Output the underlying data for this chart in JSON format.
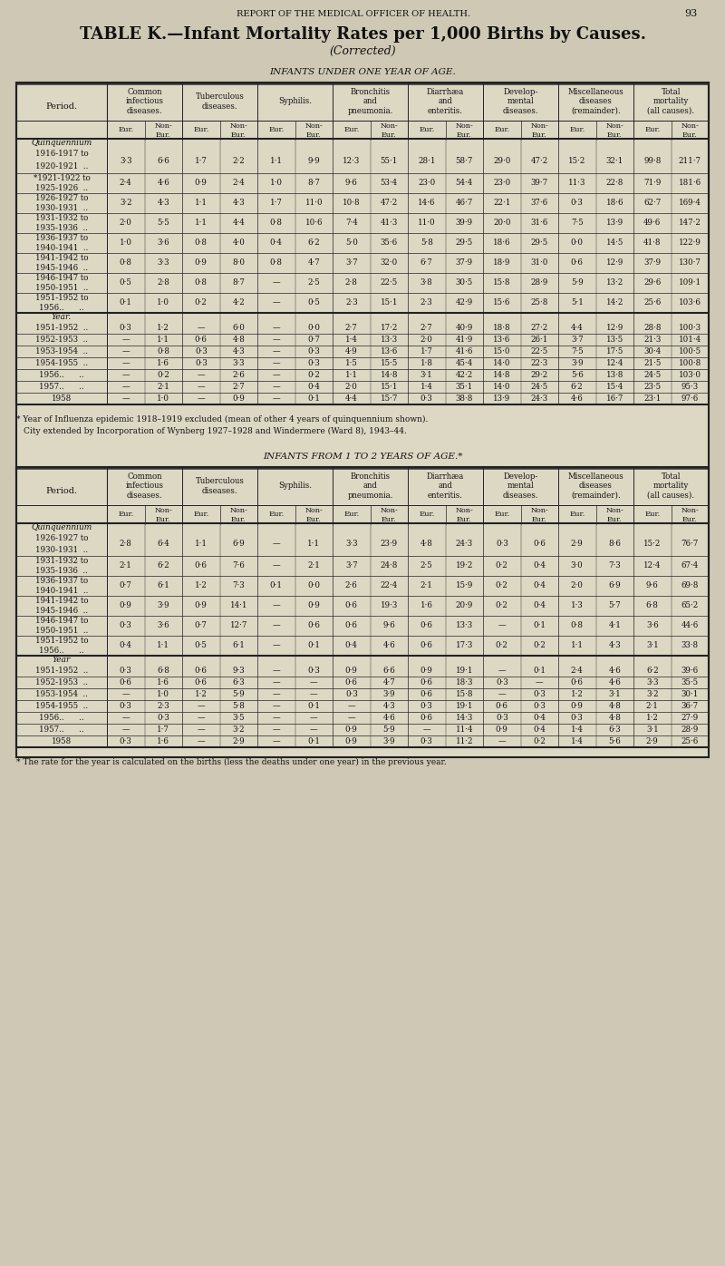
{
  "page_header": "REPORT OF THE MEDICAL OFFICER OF HEALTH.",
  "page_number": "93",
  "title_line1": "TABLE K.—Infant Mortality Rates per 1,000 Births by Causes.",
  "title_line2": "(Corrected)",
  "section1_title": "Infants under one year of age.",
  "section2_title": "Infants from 1 to 2 years of age.*",
  "col_headers": [
    "Common\ninfectious\ndiseases.",
    "Tuberculous\ndiseases.",
    "Syphilis.",
    "Bronchitis\nand\npneumonia.",
    "Diarrhæa\nand\nenteritis.",
    "Develop-\nmental\ndiseases.",
    "Miscellaneous\ndiseases\n(remainder).",
    "Total\nmortality\n(all causes)."
  ],
  "footnote1": "* Year of Influenza epidemic 1918–1919 excluded (mean of other 4 years of quinquennium shown).",
  "footnote2": "City extended by Incorporation of Wynberg 1927–1928 and Windermere (Ward 8), 1943–44.",
  "footnote3": "* The rate for the year is calculated on the births (less the deaths under one year) in the previous year.",
  "table1_quinquennia_labels": [
    "Quinquennium\n1916-1917 to\n1920-1921  ..",
    "*1921-1922 to\n1925-1926  ..",
    "1926-1927 to\n1930-1931  ..",
    "1931-1932 to\n1935-1936  ..",
    "1936-1937 to\n1940-1941  ..",
    "1941-1942 to\n1945-1946  ..",
    "1946-1947 to\n1950-1951  ..",
    "1951-1952 to\n1956..      .."
  ],
  "table1_year_labels": [
    "1951-1952  ..",
    "1952-1953  ..",
    "1953-1954  ..",
    "1954-1955  ..",
    "1956..      ..",
    "1957..      ..",
    "1958"
  ],
  "table1_quinquennia_data": [
    [
      "3·3",
      "6·6",
      "1·7",
      "2·2",
      "1·1",
      "9·9",
      "12·3",
      "55·1",
      "28·1",
      "58·7",
      "29·0",
      "47·2",
      "15·2",
      "32·1",
      "99·8",
      "211·7"
    ],
    [
      "2·4",
      "4·6",
      "0·9",
      "2·4",
      "1·0",
      "8·7",
      "9·6",
      "53·4",
      "23·0",
      "54·4",
      "23·0",
      "39·7",
      "11·3",
      "22·8",
      "71·9",
      "181·6"
    ],
    [
      "3·2",
      "4·3",
      "1·1",
      "4·3",
      "1·7",
      "11·0",
      "10·8",
      "47·2",
      "14·6",
      "46·7",
      "22·1",
      "37·6",
      "0·3",
      "18·6",
      "62·7",
      "169·4"
    ],
    [
      "2·0",
      "5·5",
      "1·1",
      "4·4",
      "0·8",
      "10·6",
      "7·4",
      "41·3",
      "11·0",
      "39·9",
      "20·0",
      "31·6",
      "7·5",
      "13·9",
      "49·6",
      "147·2"
    ],
    [
      "1·0",
      "3·6",
      "0·8",
      "4·0",
      "0·4",
      "6·2",
      "5·0",
      "35·6",
      "5·8",
      "29·5",
      "18·6",
      "29·5",
      "0·0",
      "14·5",
      "41·8",
      "122·9"
    ],
    [
      "0·8",
      "3·3",
      "0·9",
      "8·0",
      "0·8",
      "4·7",
      "3·7",
      "32·0",
      "6·7",
      "37·9",
      "18·9",
      "31·0",
      "0·6",
      "12·9",
      "37·9",
      "130·7"
    ],
    [
      "0·5",
      "2·8",
      "0·8",
      "8·7",
      "—",
      "2·5",
      "2·8",
      "22·5",
      "3·8",
      "30·5",
      "15·8",
      "28·9",
      "5·9",
      "13·2",
      "29·6",
      "109·1"
    ],
    [
      "0·1",
      "1·0",
      "0·2",
      "4·2",
      "—",
      "0·5",
      "2·3",
      "15·1",
      "2·3",
      "42·9",
      "15·6",
      "25·8",
      "5·1",
      "14·2",
      "25·6",
      "103·6"
    ]
  ],
  "table1_year_data": [
    [
      "0·3",
      "1·2",
      "—",
      "6·0",
      "—",
      "0·0",
      "2·7",
      "17·2",
      "2·7",
      "40·9",
      "18·8",
      "27·2",
      "4·4",
      "12·9",
      "28·8",
      "100·3"
    ],
    [
      "—",
      "1·1",
      "0·6",
      "4·8",
      "—",
      "0·7",
      "1·4",
      "13·3",
      "2·0",
      "41·9",
      "13·6",
      "26·1",
      "3·7",
      "13·5",
      "21·3",
      "101·4"
    ],
    [
      "—",
      "0·8",
      "0·3",
      "4·3",
      "—",
      "0·3",
      "4·9",
      "13·6",
      "1·7",
      "41·6",
      "15·0",
      "22·5",
      "7·5",
      "17·5",
      "30·4",
      "100·5"
    ],
    [
      "—",
      "1·6",
      "0·3",
      "3·3",
      "—",
      "0·3",
      "1·5",
      "15·5",
      "1·8",
      "45·4",
      "14·0",
      "22·3",
      "3·9",
      "12·4",
      "21·5",
      "100·8"
    ],
    [
      "—",
      "0·2",
      "—",
      "2·6",
      "—",
      "0·2",
      "1·1",
      "14·8",
      "3·1",
      "42·2",
      "14·8",
      "29·2",
      "5·6",
      "13·8",
      "24·5",
      "103·0"
    ],
    [
      "—",
      "2·1",
      "—",
      "2·7",
      "—",
      "0·4",
      "2·0",
      "15·1",
      "1·4",
      "35·1",
      "14·0",
      "24·5",
      "6·2",
      "15·4",
      "23·5",
      "95·3"
    ],
    [
      "—",
      "1·0",
      "—",
      "0·9",
      "—",
      "0·1",
      "4·4",
      "15·7",
      "0·3",
      "38·8",
      "13·9",
      "24·3",
      "4·6",
      "16·7",
      "23·1",
      "97·6"
    ]
  ],
  "table2_quinquennia_labels": [
    "Quinquennium\n1926-1927 to\n1930-1931  ..",
    "1931-1932 to\n1935-1936  ..",
    "1936-1937 to\n1940-1941  ..",
    "1941-1942 to\n1945-1946  ..",
    "1946-1947 to\n1950-1951  ..",
    "1951-1952 to\n1956..      .."
  ],
  "table2_year_labels": [
    "1951-1952  ..",
    "1952-1953  ..",
    "1953-1954  ..",
    "1954-1955  ..",
    "1956..      ..",
    "1957..      ..",
    "1958"
  ],
  "table2_quinquennia_data": [
    [
      "2·8",
      "6·4",
      "1·1",
      "6·9",
      "—",
      "1·1",
      "3·3",
      "23·9",
      "4·8",
      "24·3",
      "0·3",
      "0·6",
      "2·9",
      "8·6",
      "15·2",
      "76·7"
    ],
    [
      "2·1",
      "6·2",
      "0·6",
      "7·6",
      "—",
      "2·1",
      "3·7",
      "24·8",
      "2·5",
      "19·2",
      "0·2",
      "0·4",
      "3·0",
      "7·3",
      "12·4",
      "67·4"
    ],
    [
      "0·7",
      "6·1",
      "1·2",
      "7·3",
      "0·1",
      "0·0",
      "2·6",
      "22·4",
      "2·1",
      "15·9",
      "0·2",
      "0·4",
      "2·0",
      "6·9",
      "9·6",
      "69·8"
    ],
    [
      "0·9",
      "3·9",
      "0·9",
      "14·1",
      "—",
      "0·9",
      "0·6",
      "19·3",
      "1·6",
      "20·9",
      "0·2",
      "0·4",
      "1·3",
      "5·7",
      "6·8",
      "65·2"
    ],
    [
      "0·3",
      "3·6",
      "0·7",
      "12·7",
      "—",
      "0·6",
      "0·6",
      "9·6",
      "0·6",
      "13·3",
      "—",
      "0·1",
      "0·8",
      "4·1",
      "3·6",
      "44·6"
    ],
    [
      "0·4",
      "1·1",
      "0·5",
      "6·1",
      "—",
      "0·1",
      "0·4",
      "4·6",
      "0·6",
      "17·3",
      "0·2",
      "0·2",
      "1·1",
      "4·3",
      "3·1",
      "33·8"
    ]
  ],
  "table2_year_data": [
    [
      "0·3",
      "6·8",
      "0·6",
      "9·3",
      "—",
      "0·3",
      "0·9",
      "6·6",
      "0·9",
      "19·1",
      "—",
      "0·1",
      "2·4",
      "4·6",
      "6·2",
      "39·6"
    ],
    [
      "0·6",
      "1·6",
      "0·6",
      "6·3",
      "—",
      "—",
      "0·6",
      "4·7",
      "0·6",
      "18·3",
      "0·3",
      "—",
      "0·6",
      "4·6",
      "3·3",
      "35·5"
    ],
    [
      "—",
      "1·0",
      "1·2",
      "5·9",
      "—",
      "—",
      "0·3",
      "3·9",
      "0·6",
      "15·8",
      "—",
      "0·3",
      "1·2",
      "3·1",
      "3·2",
      "30·1"
    ],
    [
      "0·3",
      "2·3",
      "—",
      "5·8",
      "—",
      "0·1",
      "—",
      "4·3",
      "0·3",
      "19·1",
      "0·6",
      "0·3",
      "0·9",
      "4·8",
      "2·1",
      "36·7"
    ],
    [
      "—",
      "0·3",
      "—",
      "3·5",
      "—",
      "—",
      "—",
      "4·6",
      "0·6",
      "14·3",
      "0·3",
      "0·4",
      "0·3",
      "4·8",
      "1·2",
      "27·9"
    ],
    [
      "—",
      "1·7",
      "—",
      "3·2",
      "—",
      "—",
      "0·9",
      "5·9",
      "—",
      "11·4",
      "0·9",
      "0·4",
      "1·4",
      "6·3",
      "3·1",
      "28·9"
    ],
    [
      "0·3",
      "1·6",
      "—",
      "2·9",
      "—",
      "0·1",
      "0·9",
      "3·9",
      "0·3",
      "11·2",
      "—",
      "0·2",
      "1·4",
      "5·6",
      "2·9",
      "25·6"
    ]
  ],
  "bg_color": "#cec8b4",
  "table_bg": "#ddd8c4",
  "line_color": "#222222",
  "text_color": "#111111"
}
